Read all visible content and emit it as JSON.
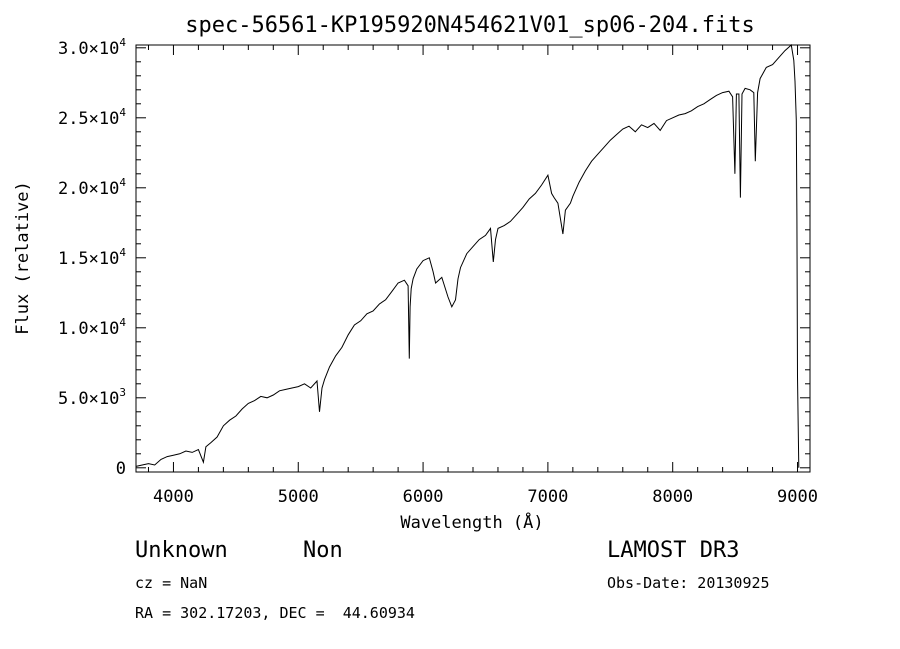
{
  "chart_data": {
    "type": "line",
    "title": "spec-56561-KP195920N454621V01_sp06-204.fits",
    "xlabel": "Wavelength (Å)",
    "ylabel": "Flux (relative)",
    "xlim": [
      3700,
      9100
    ],
    "ylim": [
      -300,
      30200
    ],
    "x_ticks": [
      4000,
      5000,
      6000,
      7000,
      8000,
      9000
    ],
    "x_tick_labels": [
      "4000",
      "5000",
      "6000",
      "7000",
      "8000",
      "9000"
    ],
    "y_ticks": [
      0,
      5000,
      10000,
      15000,
      20000,
      25000,
      30000
    ],
    "y_tick_mantissa": [
      "0",
      "5.0×10",
      "1.0×10",
      "1.5×10",
      "2.0×10",
      "2.5×10",
      "3.0×10"
    ],
    "y_tick_exponent": [
      "",
      "3",
      "4",
      "4",
      "4",
      "4",
      "4"
    ],
    "grid": false,
    "series": [
      {
        "x": [
          3700,
          3750,
          3800,
          3850,
          3900,
          3950,
          4000,
          4050,
          4100,
          4150,
          4200,
          4240,
          4260,
          4300,
          4350,
          4400,
          4450,
          4500,
          4550,
          4600,
          4650,
          4700,
          4750,
          4800,
          4850,
          4900,
          4950,
          5000,
          5050,
          5100,
          5150,
          5170,
          5190,
          5210,
          5250,
          5300,
          5350,
          5400,
          5450,
          5500,
          5550,
          5600,
          5650,
          5700,
          5750,
          5800,
          5850,
          5880,
          5890,
          5896,
          5905,
          5920,
          5950,
          6000,
          6050,
          6080,
          6100,
          6150,
          6200,
          6230,
          6260,
          6280,
          6300,
          6350,
          6400,
          6450,
          6500,
          6540,
          6563,
          6580,
          6600,
          6650,
          6700,
          6750,
          6800,
          6850,
          6900,
          6950,
          7000,
          7030,
          7050,
          7080,
          7120,
          7140,
          7180,
          7200,
          7250,
          7300,
          7350,
          7400,
          7450,
          7500,
          7550,
          7600,
          7650,
          7700,
          7750,
          7800,
          7850,
          7900,
          7950,
          8000,
          8050,
          8100,
          8150,
          8200,
          8250,
          8300,
          8350,
          8400,
          8450,
          8480,
          8498,
          8510,
          8530,
          8542,
          8555,
          8580,
          8620,
          8650,
          8662,
          8680,
          8700,
          8750,
          8800,
          8850,
          8900,
          8950,
          8970,
          8980,
          8990,
          8995,
          9000,
          9010
        ],
        "y": [
          100,
          200,
          300,
          200,
          600,
          800,
          900,
          1000,
          1200,
          1100,
          1300,
          400,
          1500,
          1800,
          2200,
          3000,
          3400,
          3700,
          4200,
          4600,
          4800,
          5100,
          5000,
          5200,
          5500,
          5600,
          5700,
          5800,
          6000,
          5700,
          6200,
          4000,
          5700,
          6300,
          7200,
          8000,
          8600,
          9500,
          10200,
          10500,
          11000,
          11200,
          11700,
          12000,
          12600,
          13200,
          13400,
          13000,
          7800,
          11500,
          12800,
          13500,
          14200,
          14800,
          15000,
          14000,
          13200,
          13600,
          12200,
          11500,
          12000,
          13500,
          14300,
          15300,
          15800,
          16300,
          16600,
          17100,
          14700,
          16300,
          17100,
          17300,
          17600,
          18100,
          18600,
          19200,
          19600,
          20200,
          20900,
          19600,
          19300,
          18900,
          16700,
          18400,
          18900,
          19400,
          20400,
          21200,
          21900,
          22400,
          22900,
          23400,
          23800,
          24200,
          24400,
          24000,
          24500,
          24300,
          24600,
          24100,
          24800,
          25000,
          25200,
          25300,
          25500,
          25800,
          26000,
          26300,
          26600,
          26800,
          26900,
          26500,
          21000,
          26700,
          26700,
          19300,
          26700,
          27100,
          27000,
          26800,
          21900,
          26800,
          27800,
          28600,
          28800,
          29300,
          29800,
          30200,
          29100,
          27600,
          24800,
          18000,
          6500,
          0
        ]
      }
    ]
  },
  "info": {
    "object_class": "Unknown",
    "subclass": "Non",
    "survey": "LAMOST DR3",
    "redshift": "cz = NaN",
    "obs_date": "Obs-Date: 20130925",
    "coordinates": "RA = 302.17203, DEC =  44.60934"
  }
}
